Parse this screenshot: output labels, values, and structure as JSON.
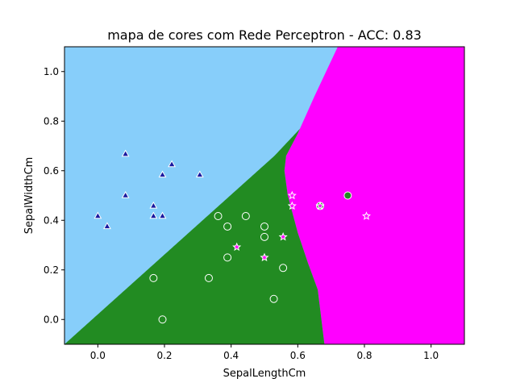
{
  "chart_data": {
    "type": "scatter",
    "title": "mapa de cores com Rede Perceptron - ACC: 0.83",
    "xlabel": "SepalLengthCm",
    "ylabel": "SepalWidthCm",
    "xlim": [
      -0.1,
      1.1
    ],
    "ylim": [
      -0.1,
      1.1
    ],
    "x_ticks": [
      0.0,
      0.2,
      0.4,
      0.6,
      0.8,
      1.0
    ],
    "x_tick_labels": [
      "0.0",
      "0.2",
      "0.4",
      "0.6",
      "0.8",
      "1.0"
    ],
    "y_ticks": [
      0.0,
      0.2,
      0.4,
      0.6,
      0.8,
      1.0
    ],
    "y_tick_labels": [
      "0.0",
      "0.2",
      "0.4",
      "0.6",
      "0.8",
      "1.0"
    ],
    "grid": false,
    "background": "decision-region color map (3 classes)",
    "region_colors": [
      "#87CEFA",
      "#228B22",
      "#FF00FF"
    ],
    "decision_boundaries": {
      "blue_green": [
        [
          -0.1,
          -0.1
        ],
        [
          0.53,
          0.66
        ],
        [
          0.6,
          0.76
        ],
        [
          0.7,
          0.9
        ],
        [
          0.76,
          1.1
        ]
      ],
      "green_magenta_x_at_y": [
        [
          -0.1,
          0.68
        ],
        [
          0.12,
          0.66
        ],
        [
          0.23,
          0.63
        ],
        [
          0.35,
          0.6
        ],
        [
          0.5,
          0.57
        ],
        [
          0.6,
          0.56
        ],
        [
          0.66,
          0.565
        ],
        [
          0.75,
          0.6
        ],
        [
          0.9,
          0.65
        ],
        [
          1.1,
          0.72
        ]
      ]
    },
    "series": [
      {
        "marker": "triangle",
        "color": "#1a1aa0",
        "points": [
          [
            0.0,
            0.417
          ],
          [
            0.028,
            0.375
          ],
          [
            0.083,
            0.667
          ],
          [
            0.083,
            0.5
          ],
          [
            0.167,
            0.458
          ],
          [
            0.167,
            0.417
          ],
          [
            0.194,
            0.583
          ],
          [
            0.194,
            0.417
          ],
          [
            0.222,
            0.625
          ],
          [
            0.306,
            0.583
          ]
        ]
      },
      {
        "marker": "circle",
        "color": "#228B22",
        "points": [
          [
            0.167,
            0.167
          ],
          [
            0.194,
            0.0
          ],
          [
            0.333,
            0.167
          ],
          [
            0.361,
            0.417
          ],
          [
            0.389,
            0.375
          ],
          [
            0.389,
            0.25
          ],
          [
            0.444,
            0.417
          ],
          [
            0.5,
            0.375
          ],
          [
            0.5,
            0.333
          ],
          [
            0.528,
            0.083
          ],
          [
            0.556,
            0.208
          ],
          [
            0.667,
            0.458
          ],
          [
            0.75,
            0.5
          ]
        ]
      },
      {
        "marker": "star",
        "color": "#FF00FF",
        "points": [
          [
            0.417,
            0.292
          ],
          [
            0.5,
            0.25
          ],
          [
            0.556,
            0.333
          ],
          [
            0.583,
            0.5
          ],
          [
            0.583,
            0.458
          ],
          [
            0.667,
            0.458
          ],
          [
            0.806,
            0.417
          ]
        ]
      }
    ]
  }
}
